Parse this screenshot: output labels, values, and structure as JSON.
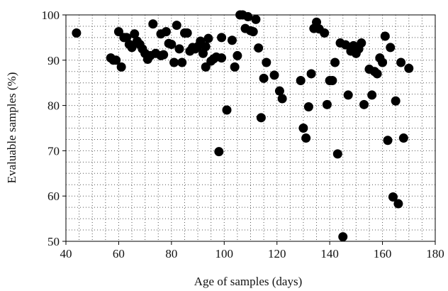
{
  "chart_data": {
    "type": "scatter",
    "title": "",
    "xlabel": "Age of samples (days)",
    "ylabel": "Evaluable samples (%)",
    "xlim": [
      40,
      180
    ],
    "ylim": [
      50,
      100
    ],
    "xticks": [
      40,
      60,
      80,
      100,
      120,
      140,
      160,
      180
    ],
    "yticks": [
      50,
      60,
      70,
      80,
      90,
      100
    ],
    "minor_grid_x_step": 5,
    "minor_grid_y_step": 2.5,
    "grid": true,
    "grid_style": "dotted",
    "marker_color": "#000000",
    "points": [
      [
        44,
        96
      ],
      [
        57,
        90.5
      ],
      [
        58,
        90
      ],
      [
        59,
        90
      ],
      [
        60,
        96.3
      ],
      [
        61,
        88.5
      ],
      [
        62,
        95
      ],
      [
        63,
        95
      ],
      [
        64,
        93.5
      ],
      [
        65,
        92.8
      ],
      [
        66,
        95.8
      ],
      [
        67,
        94.2
      ],
      [
        68,
        93.5
      ],
      [
        69,
        92.5
      ],
      [
        70,
        91.5
      ],
      [
        71,
        90.2
      ],
      [
        72,
        91
      ],
      [
        73,
        98
      ],
      [
        74,
        91.5
      ],
      [
        76,
        95.8
      ],
      [
        76,
        91
      ],
      [
        77,
        91.2
      ],
      [
        78,
        96.3
      ],
      [
        79,
        93.7
      ],
      [
        80,
        93.5
      ],
      [
        81,
        89.5
      ],
      [
        82,
        97.7
      ],
      [
        83,
        92.5
      ],
      [
        84,
        89.5
      ],
      [
        85,
        96
      ],
      [
        86,
        96
      ],
      [
        87,
        92
      ],
      [
        88,
        92.8
      ],
      [
        89,
        92.5
      ],
      [
        90,
        93
      ],
      [
        91,
        94.2
      ],
      [
        92,
        91.5
      ],
      [
        93,
        93
      ],
      [
        93,
        88.5
      ],
      [
        94,
        94.8
      ],
      [
        95,
        89.8
      ],
      [
        96,
        90.3
      ],
      [
        97,
        90.7
      ],
      [
        98,
        69.8
      ],
      [
        99,
        95
      ],
      [
        99,
        90.5
      ],
      [
        101,
        79
      ],
      [
        103,
        94.4
      ],
      [
        104,
        88.5
      ],
      [
        105,
        91
      ],
      [
        106,
        100
      ],
      [
        107,
        100
      ],
      [
        108,
        97
      ],
      [
        109,
        99.6
      ],
      [
        110,
        96.5
      ],
      [
        111,
        96.3
      ],
      [
        112,
        99
      ],
      [
        113,
        92.7
      ],
      [
        114,
        77.3
      ],
      [
        115,
        86
      ],
      [
        116,
        89.5
      ],
      [
        119,
        86.7
      ],
      [
        121,
        83.2
      ],
      [
        122,
        81.5
      ],
      [
        129,
        85.5
      ],
      [
        130,
        75
      ],
      [
        131,
        72.8
      ],
      [
        132,
        79.7
      ],
      [
        133,
        87
      ],
      [
        134,
        97
      ],
      [
        135,
        98.4
      ],
      [
        136,
        96.9
      ],
      [
        138,
        96
      ],
      [
        139,
        80.2
      ],
      [
        140,
        85.5
      ],
      [
        141,
        85.5
      ],
      [
        142,
        89.5
      ],
      [
        143,
        69.3
      ],
      [
        144,
        93.8
      ],
      [
        145,
        51
      ],
      [
        146,
        93.4
      ],
      [
        147,
        82.3
      ],
      [
        148,
        92
      ],
      [
        149,
        93.2
      ],
      [
        150,
        91.5
      ],
      [
        151,
        92.5
      ],
      [
        152,
        93.8
      ],
      [
        153,
        80.2
      ],
      [
        155,
        88
      ],
      [
        156,
        82.3
      ],
      [
        157,
        87.5
      ],
      [
        158,
        87
      ],
      [
        159,
        90.5
      ],
      [
        160,
        89.5
      ],
      [
        161,
        95.3
      ],
      [
        162,
        72.3
      ],
      [
        163,
        92.8
      ],
      [
        164,
        59.8
      ],
      [
        165,
        81
      ],
      [
        166,
        58.3
      ],
      [
        167,
        89.5
      ],
      [
        168,
        72.8
      ],
      [
        170,
        88.2
      ]
    ]
  }
}
